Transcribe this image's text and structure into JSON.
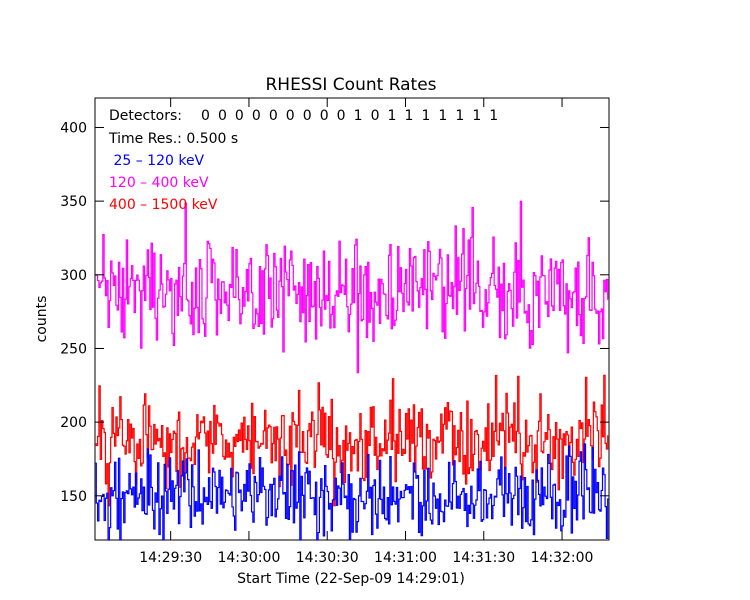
{
  "chart_data": {
    "type": "line",
    "title": "RHESSI Count Rates",
    "xlabel": "Start Time (22-Sep-09 14:29:01)",
    "ylabel": "counts",
    "xlim_seconds_from_start": [
      0,
      197
    ],
    "ylim": [
      120,
      420
    ],
    "xticks": [
      {
        "t": 29,
        "label": "14:29:30"
      },
      {
        "t": 59,
        "label": "14:30:00"
      },
      {
        "t": 89,
        "label": "14:30:30"
      },
      {
        "t": 119,
        "label": "14:31:00"
      },
      {
        "t": 149,
        "label": "14:31:30"
      },
      {
        "t": 179,
        "label": "14:32:00"
      }
    ],
    "yticks": [
      150,
      200,
      250,
      300,
      350,
      400
    ],
    "annotations": {
      "detectors_label": "Detectors:",
      "detectors_value": "0 0 0 0 0 0 0 0 0 1 0 1 1 1 1 1 1 1",
      "time_res": "Time Res.: 0.500 s"
    },
    "time_resolution_s": 0.5,
    "series": [
      {
        "name": " 25 – 120 keV",
        "color": "#0000ff",
        "mean": 150,
        "spread": 14,
        "spike_max": 175
      },
      {
        "name": "120 – 400 keV",
        "color": "#ff00ff",
        "mean": 288,
        "spread": 17,
        "spike_max": 351
      },
      {
        "name": "400 – 1500 keV",
        "color": "#ff0000",
        "mean": 188,
        "spread": 14,
        "spike_max": 232
      }
    ]
  }
}
